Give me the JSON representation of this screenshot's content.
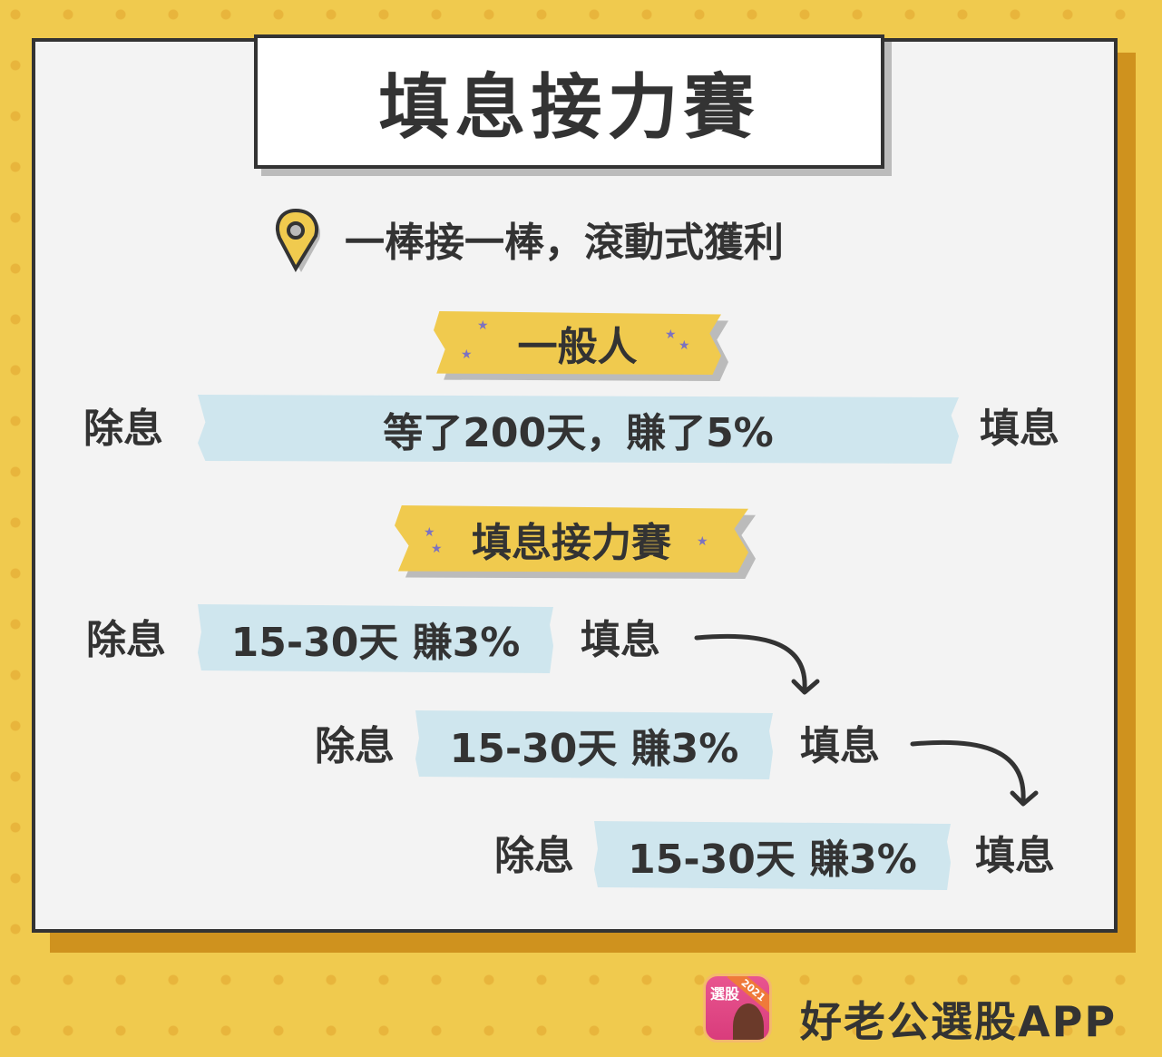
{
  "title": "填息接力賽",
  "subtitle": "一棒接一棒，滾動式獲利",
  "section_normal": {
    "label": "一般人",
    "start": "除息",
    "middle": "等了200天，賺了5%",
    "end": "填息"
  },
  "section_relay": {
    "label": "填息接力賽",
    "rows": [
      {
        "start": "除息",
        "middle": "15-30天 賺3%",
        "end": "填息"
      },
      {
        "start": "除息",
        "middle": "15-30天 賺3%",
        "end": "填息"
      },
      {
        "start": "除息",
        "middle": "15-30天 賺3%",
        "end": "填息"
      }
    ]
  },
  "footer": {
    "brand": "好老公選股APP",
    "logo_text": "選股",
    "logo_year": "2021"
  },
  "colors": {
    "background": "#f0ca4e",
    "panel": "#f3f3f3",
    "tape_blue": "#cfe6ee",
    "accent_shadow": "#cf921e",
    "text": "#333333",
    "star": "#7c72c0"
  },
  "icons": [
    "map-pin-icon",
    "curved-arrow-icon"
  ]
}
